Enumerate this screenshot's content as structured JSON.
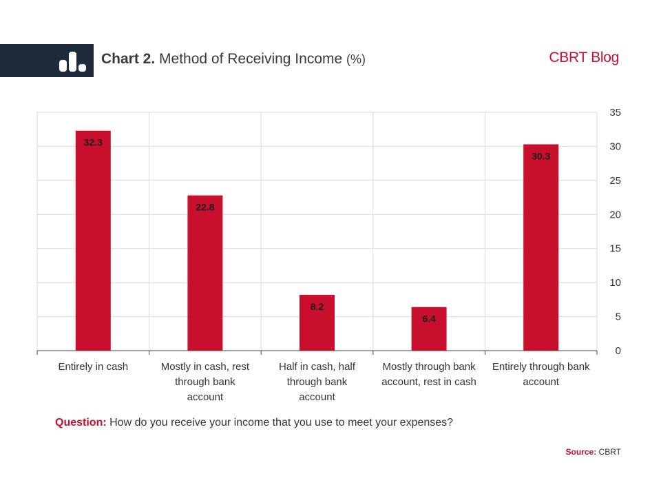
{
  "header": {
    "title_lead": "Chart 2.",
    "title_main": "Method of Receiving Income",
    "title_unit": "(%)",
    "brand": "CBRT Blog",
    "logo_icon": "bar-chart-icon"
  },
  "colors": {
    "bar": "#c8102e",
    "header_bar": "#1e2b3a",
    "brand": "#c8102e",
    "grid": "#d9d9d9"
  },
  "chart_data": {
    "type": "bar",
    "title": "Chart 2. Method of Receiving Income (%)",
    "categories": [
      [
        "Entirely in cash"
      ],
      [
        "Mostly in cash, rest",
        "through bank",
        "account"
      ],
      [
        "Half in cash, half",
        "through bank",
        "account"
      ],
      [
        "Mostly through bank",
        "account, rest in cash"
      ],
      [
        "Entirely through bank",
        "account"
      ]
    ],
    "values": [
      32.3,
      22.8,
      8.2,
      6.4,
      30.3
    ],
    "ylim": [
      0,
      35
    ],
    "yticks": [
      0,
      5,
      10,
      15,
      20,
      25,
      30,
      35
    ],
    "y_axis_side": "right",
    "grid": true,
    "xlabel": "",
    "ylabel": ""
  },
  "footer": {
    "question_label": "Question:",
    "question_text": "How do you receive your income that you use to meet your expenses?",
    "source_label": "Source:",
    "source_text": "CBRT"
  }
}
